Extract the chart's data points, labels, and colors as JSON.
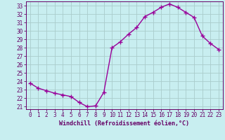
{
  "x": [
    0,
    1,
    2,
    3,
    4,
    5,
    6,
    7,
    8,
    9,
    10,
    11,
    12,
    13,
    14,
    15,
    16,
    17,
    18,
    19,
    20,
    21,
    22,
    23
  ],
  "y": [
    23.8,
    23.2,
    22.9,
    22.6,
    22.4,
    22.2,
    21.5,
    21.0,
    21.1,
    22.7,
    28.0,
    28.7,
    29.6,
    30.4,
    31.7,
    32.2,
    32.8,
    33.2,
    32.8,
    32.2,
    31.6,
    29.4,
    28.5,
    27.8
  ],
  "line_color": "#990099",
  "marker": "+",
  "markersize": 4,
  "linewidth": 1.0,
  "bg_color": "#c8eef0",
  "grid_color": "#aacccc",
  "xlabel": "Windchill (Refroidissement éolien,°C)",
  "xlabel_color": "#660066",
  "tick_color": "#660066",
  "ylim": [
    20.7,
    33.5
  ],
  "yticks": [
    21,
    22,
    23,
    24,
    25,
    26,
    27,
    28,
    29,
    30,
    31,
    32,
    33
  ],
  "xlim": [
    -0.5,
    23.5
  ],
  "xticks": [
    0,
    1,
    2,
    3,
    4,
    5,
    6,
    7,
    8,
    9,
    10,
    11,
    12,
    13,
    14,
    15,
    16,
    17,
    18,
    19,
    20,
    21,
    22,
    23
  ],
  "spine_color": "#660066",
  "tick_fontsize": 5.5,
  "xlabel_fontsize": 6.0
}
